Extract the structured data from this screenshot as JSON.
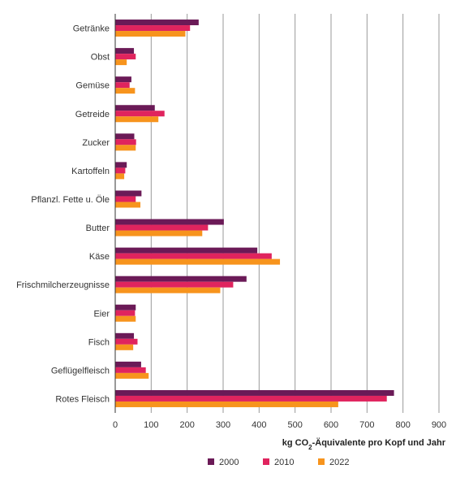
{
  "chart_data": {
    "type": "bar",
    "orientation": "horizontal",
    "categories": [
      "Getränke",
      "Obst",
      "Gemüse",
      "Getreide",
      "Zucker",
      "Kartoffeln",
      "Pflanzl. Fette u. Öle",
      "Butter",
      "Käse",
      "Frischmilcherzeugnisse",
      "Eier",
      "Fisch",
      "Geflügelfleisch",
      "Rotes Fleisch"
    ],
    "series": [
      {
        "name": "2000",
        "color": "#6b1a57",
        "values": [
          232,
          52,
          45,
          110,
          53,
          32,
          73,
          302,
          395,
          365,
          57,
          52,
          72,
          775
        ]
      },
      {
        "name": "2010",
        "color": "#e0245e",
        "values": [
          208,
          57,
          40,
          137,
          58,
          28,
          57,
          258,
          435,
          328,
          55,
          62,
          85,
          755
        ]
      },
      {
        "name": "2022",
        "color": "#f7941d",
        "values": [
          195,
          32,
          55,
          120,
          57,
          25,
          70,
          242,
          458,
          292,
          57,
          50,
          93,
          620
        ]
      }
    ],
    "xlabel_main": "kg CO",
    "xlabel_sub": "2",
    "xlabel_rest": "-Äquivalente pro Kopf und Jahr",
    "xlim": [
      0,
      900
    ],
    "xticks": [
      0,
      100,
      200,
      300,
      400,
      500,
      600,
      700,
      800,
      900
    ],
    "grid": true,
    "legend_position": "bottom"
  }
}
